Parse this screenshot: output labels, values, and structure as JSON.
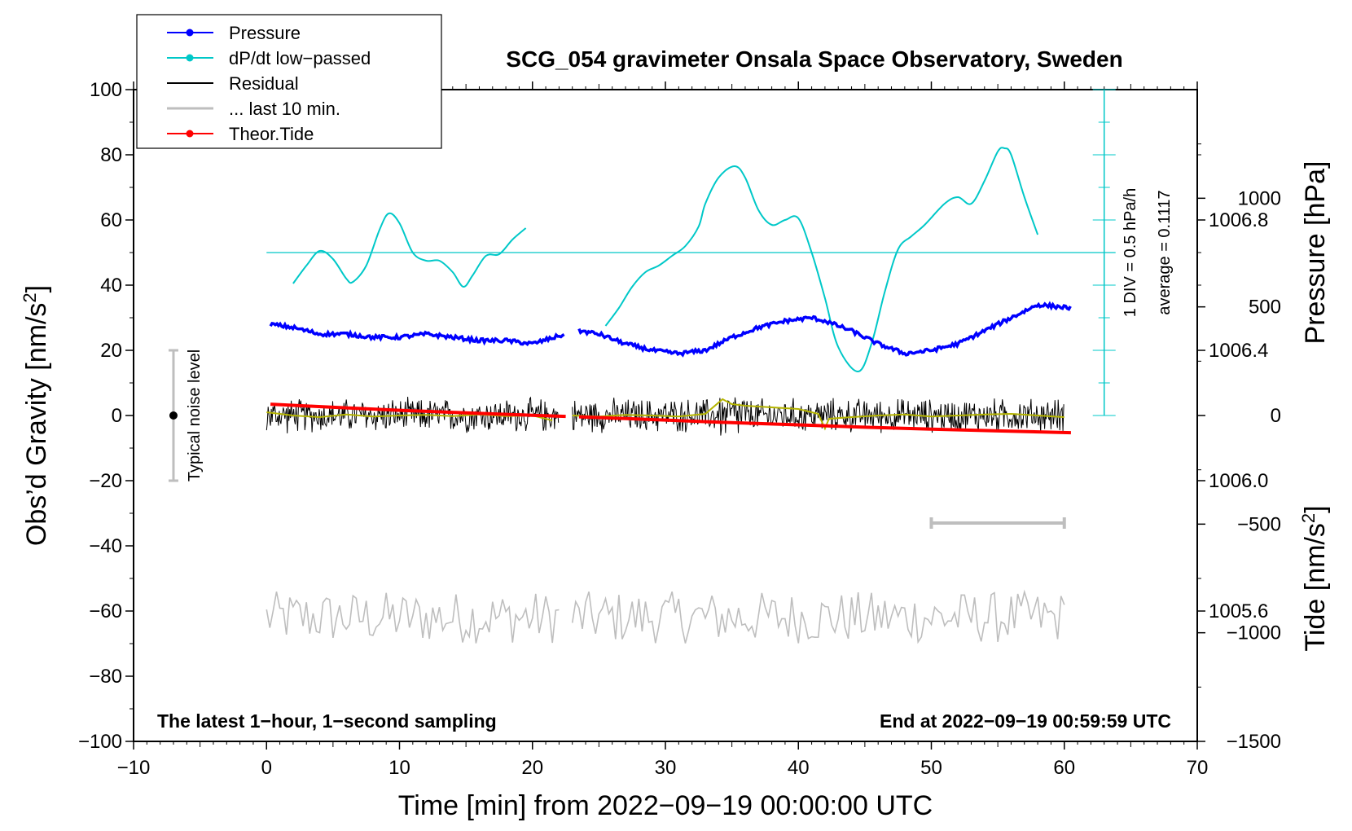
{
  "chart_data": {
    "type": "line",
    "title": "SCG_054 gravimeter Onsala Space Observatory, Sweden",
    "xlabel": "Time [min] from 2022−09−19 00:00:00 UTC",
    "ylabel_left": "Obs’d Gravity [nm/s",
    "ylabel_left_sup": "2",
    "ylabel_left_end": "]",
    "ylabel_right_pressure": "Pressure [hPa]",
    "ylabel_right_tide": "Tide [nm/s",
    "ylabel_right_tide_sup": "2",
    "ylabel_right_tide_end": "]",
    "xlim": [
      -10,
      70
    ],
    "ylim": [
      -100,
      100
    ],
    "x_ticks": [
      "−10",
      "0",
      "10",
      "20",
      "30",
      "40",
      "50",
      "60",
      "70"
    ],
    "x_tick_values": [
      -10,
      0,
      10,
      20,
      30,
      40,
      50,
      60,
      70
    ],
    "y_ticks": [
      "100",
      "80",
      "60",
      "40",
      "20",
      "0",
      "−20",
      "−40",
      "−60",
      "−80",
      "−100"
    ],
    "y_tick_values": [
      100,
      80,
      60,
      40,
      20,
      0,
      -20,
      -40,
      -60,
      -80,
      -100
    ],
    "pressure_range": [
      1005.2,
      1007.2
    ],
    "pressure_ticks": [
      "1006.8",
      "1006.4",
      "1006.0",
      "1005.6"
    ],
    "pressure_tick_values": [
      1006.8,
      1006.4,
      1006.0,
      1005.6
    ],
    "tide_range": [
      -1500,
      1500
    ],
    "tide_ticks": [
      "1000",
      "500",
      "0",
      "−500",
      "−1000",
      "−1500"
    ],
    "tide_tick_values": [
      1000,
      500,
      0,
      -500,
      -1000,
      -1500
    ],
    "legend": [
      {
        "label": "Pressure",
        "color": "#0000ff",
        "marker": true
      },
      {
        "label": "dP/dt low−passed",
        "color": "#00c8c8",
        "marker": true
      },
      {
        "label": "Residual",
        "color": "#000000",
        "marker": false
      },
      {
        "label": "... last 10 min.",
        "color": "#bebebe",
        "marker": false
      },
      {
        "label": "Theor.Tide",
        "color": "#ff0000",
        "marker": true
      }
    ],
    "annotations": {
      "noise_label": "Typical noise level",
      "div_label": "1 DIV = 0.5 hPa/h",
      "average_label": "average = 0.1117",
      "bottom_left": "The latest 1−hour, 1−second sampling",
      "bottom_right": "End at 2022−09−19 00:59:59 UTC"
    },
    "noise_bar": {
      "x": -7,
      "y_low": -20,
      "y_high": 20,
      "center": 0
    },
    "last10_bar": {
      "x_start": 50,
      "x_end": 60,
      "y": -33
    },
    "dpdt_axis": {
      "x": 63,
      "y_top": 100,
      "y_bottom": 0,
      "baseline": 50
    },
    "series": [
      {
        "name": "Pressure",
        "color": "#0000ff",
        "unit": "hPa",
        "segments": [
          [
            [
              0.3,
              1006.48
            ],
            [
              2,
              1006.47
            ],
            [
              4,
              1006.45
            ],
            [
              6,
              1006.45
            ],
            [
              8,
              1006.44
            ],
            [
              10,
              1006.44
            ],
            [
              12,
              1006.45
            ],
            [
              14,
              1006.44
            ],
            [
              16,
              1006.43
            ],
            [
              18,
              1006.43
            ],
            [
              20,
              1006.42
            ],
            [
              22.5,
              1006.45
            ]
          ],
          [
            [
              23.5,
              1006.46
            ],
            [
              25,
              1006.45
            ],
            [
              27,
              1006.42
            ],
            [
              29,
              1006.4
            ],
            [
              31,
              1006.39
            ],
            [
              33,
              1006.4
            ],
            [
              35,
              1006.44
            ],
            [
              37,
              1006.47
            ],
            [
              39,
              1006.49
            ],
            [
              41,
              1006.5
            ],
            [
              42,
              1006.49
            ],
            [
              44,
              1006.46
            ],
            [
              46,
              1006.42
            ],
            [
              48,
              1006.39
            ],
            [
              50,
              1006.4
            ],
            [
              52,
              1006.42
            ],
            [
              54,
              1006.46
            ],
            [
              56,
              1006.5
            ],
            [
              58,
              1006.54
            ],
            [
              60.5,
              1006.53
            ]
          ]
        ]
      },
      {
        "name": "dP/dt low−passed",
        "color": "#00c8c8",
        "unit": "nm/s2-scale",
        "segments": [
          [
            [
              2,
              40.5
            ],
            [
              3,
              46
            ],
            [
              4,
              50.5
            ],
            [
              5,
              48
            ],
            [
              6,
              42
            ],
            [
              6.5,
              41
            ],
            [
              7.5,
              46
            ],
            [
              8.5,
              57
            ],
            [
              9.2,
              62
            ],
            [
              10,
              59
            ],
            [
              11,
              50
            ],
            [
              12,
              47.5
            ],
            [
              13,
              47.5
            ],
            [
              14,
              44
            ],
            [
              14.8,
              39.5
            ],
            [
              15.5,
              43
            ],
            [
              16.5,
              49
            ],
            [
              17.5,
              49.5
            ],
            [
              18.5,
              54
            ],
            [
              19.5,
              57.5
            ]
          ],
          [
            [
              25.5,
              27.5
            ],
            [
              26.5,
              33
            ],
            [
              27.5,
              39.5
            ],
            [
              28.5,
              44
            ],
            [
              29.5,
              46
            ],
            [
              30.5,
              49
            ],
            [
              31.5,
              52
            ],
            [
              32.5,
              58
            ],
            [
              33,
              65
            ],
            [
              34,
              73
            ],
            [
              35.2,
              76.5
            ],
            [
              36,
              73
            ],
            [
              37,
              63
            ],
            [
              38,
              58.5
            ],
            [
              39,
              60
            ],
            [
              40,
              60.5
            ],
            [
              41,
              50
            ],
            [
              42,
              36
            ],
            [
              43,
              21
            ],
            [
              44.5,
              13.5
            ],
            [
              45.5,
              22
            ],
            [
              46.5,
              38
            ],
            [
              47.5,
              51
            ],
            [
              48.5,
              55
            ],
            [
              49.5,
              58.5
            ],
            [
              51,
              65
            ],
            [
              52,
              67
            ],
            [
              53,
              65
            ],
            [
              54,
              72
            ],
            [
              55,
              81
            ],
            [
              55.5,
              82
            ],
            [
              56,
              80
            ],
            [
              57,
              67
            ],
            [
              58,
              55.5
            ]
          ]
        ]
      },
      {
        "name": "Residual",
        "color": "#000000",
        "unit": "nm/s2",
        "ranges": [
          [
            0,
            22
          ],
          [
            23,
            60
          ]
        ],
        "amplitude": 6
      },
      {
        "name": "Residual smoothed",
        "color": "#b4b400",
        "unit": "nm/s2",
        "segments": [
          [
            [
              0,
              1
            ],
            [
              1,
              0.5
            ],
            [
              2,
              0
            ],
            [
              4,
              -0.5
            ],
            [
              6,
              0.3
            ],
            [
              8,
              -0.3
            ],
            [
              10,
              0
            ],
            [
              12,
              0.2
            ],
            [
              14,
              -0.2
            ],
            [
              16,
              0.3
            ],
            [
              18,
              -0.2
            ],
            [
              20,
              0
            ],
            [
              21.5,
              -1.5
            ]
          ],
          [
            [
              23,
              0
            ],
            [
              25,
              -0.3
            ],
            [
              27,
              0.2
            ],
            [
              29,
              0
            ],
            [
              31,
              -0.3
            ],
            [
              33,
              0.5
            ],
            [
              34.3,
              5
            ],
            [
              35,
              3.5
            ],
            [
              36,
              3
            ],
            [
              38,
              2.5
            ],
            [
              40,
              2
            ],
            [
              41.5,
              0.5
            ],
            [
              42,
              -4
            ],
            [
              42.3,
              -1
            ],
            [
              44,
              -0.5
            ],
            [
              46,
              0
            ],
            [
              48,
              0.3
            ],
            [
              50,
              -0.3
            ],
            [
              52,
              0
            ],
            [
              54,
              0.3
            ],
            [
              56,
              0.5
            ],
            [
              58,
              0
            ],
            [
              60,
              -0.5
            ]
          ]
        ]
      },
      {
        "name": "... last 10 min.",
        "color": "#bebebe",
        "unit": "nm/s2",
        "ranges": [
          [
            0,
            22
          ],
          [
            23,
            60
          ]
        ],
        "center": -62,
        "amplitude": 8
      },
      {
        "name": "Theor.Tide",
        "color": "#ff0000",
        "unit": "nm/s2 (tide)",
        "segments": [
          [
            [
              0.3,
              52
            ],
            [
              5,
              38
            ],
            [
              10,
              24
            ],
            [
              15,
              12
            ],
            [
              20,
              1
            ],
            [
              22.5,
              -4
            ]
          ],
          [
            [
              23.5,
              -6
            ],
            [
              30,
              -21
            ],
            [
              35,
              -33
            ],
            [
              40,
              -43
            ],
            [
              45,
              -54
            ],
            [
              50,
              -63
            ],
            [
              55,
              -71
            ],
            [
              60.5,
              -79
            ]
          ]
        ]
      }
    ]
  }
}
